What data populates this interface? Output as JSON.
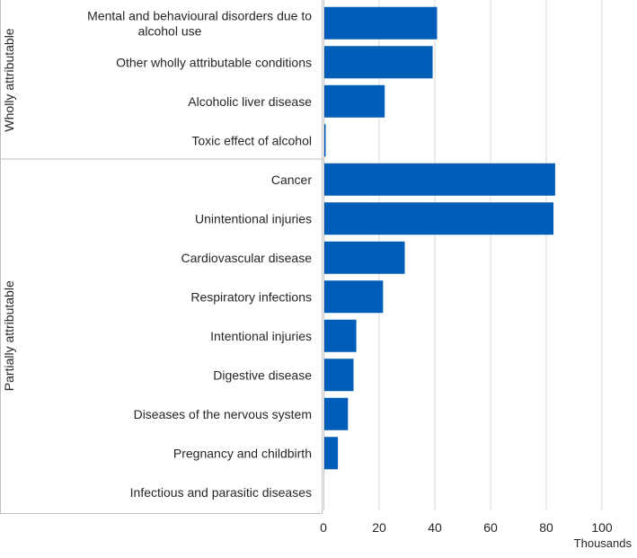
{
  "chart_data": {
    "type": "bar",
    "orientation": "horizontal",
    "unit_label": "Thousands",
    "xlim": [
      0,
      110
    ],
    "x_ticks": [
      0,
      20,
      40,
      60,
      80,
      100
    ],
    "grid": true,
    "bar_color": "#005eb8",
    "groups": [
      {
        "name": "Wholly attributable",
        "items": [
          {
            "label": "Mental and behavioural disorders due to alcohol use",
            "value": 40.8
          },
          {
            "label": "Other wholly attributable conditions",
            "value": 39.2
          },
          {
            "label": "Alcoholic liver disease",
            "value": 22.0
          },
          {
            "label": "Toxic effect of alcohol",
            "value": 0.8
          }
        ]
      },
      {
        "name": "Partially attributable",
        "items": [
          {
            "label": "Cancer",
            "value": 83.2
          },
          {
            "label": "Unintentional injuries",
            "value": 82.6
          },
          {
            "label": "Cardiovascular disease",
            "value": 29.2
          },
          {
            "label": "Respiratory infections",
            "value": 21.4
          },
          {
            "label": "Intentional injuries",
            "value": 11.8
          },
          {
            "label": "Digestive disease",
            "value": 10.8
          },
          {
            "label": "Diseases of the nervous system",
            "value": 8.8
          },
          {
            "label": "Pregnancy and childbirth",
            "value": 5.2
          },
          {
            "label": "Infectious and parasitic diseases",
            "value": 0.2
          }
        ]
      }
    ]
  }
}
